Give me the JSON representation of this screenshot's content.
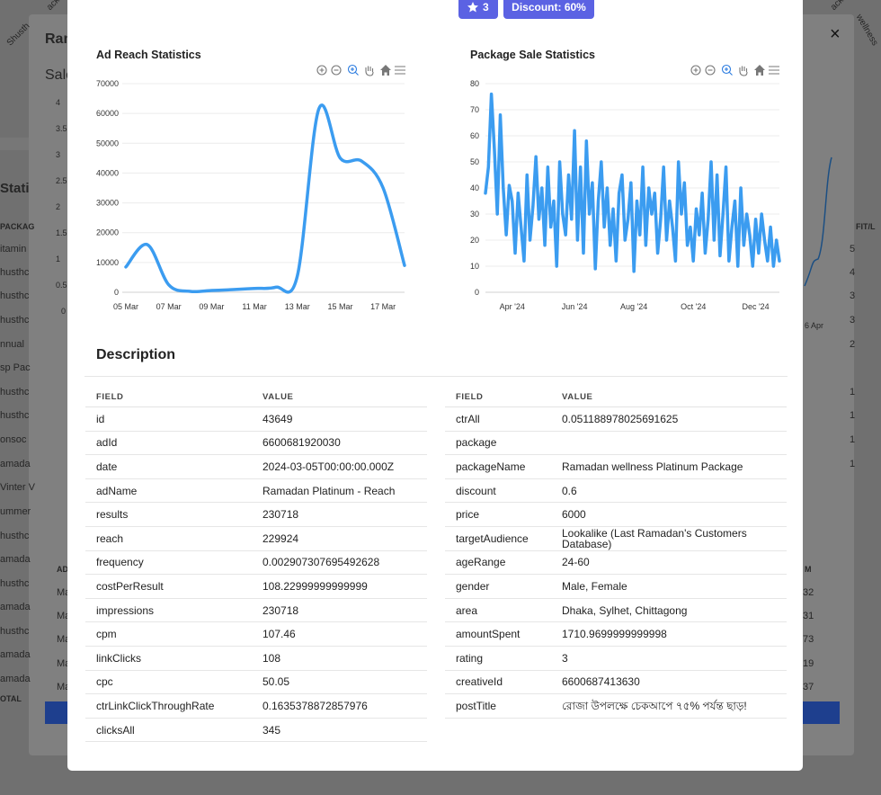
{
  "background": {
    "title": "Ram",
    "subtitle": "Sale",
    "section": "Stati",
    "close": "×",
    "table_header": "PACKAG",
    "rows": [
      "itamin",
      "husthc",
      "husthc",
      "husthc",
      "nnual",
      "sp Pac",
      "husthc",
      "husthc",
      "onsoc",
      "amada",
      "Vinter V",
      "ummer",
      "husthc",
      "amada",
      "husthc",
      "amada",
      "husthc",
      "amada",
      "amada"
    ],
    "total": "OTAL",
    "ad_header": "AD",
    "ad_rows": [
      "Ma",
      "Ma",
      "Ma",
      "Ma",
      "Ma"
    ],
    "right_header": "FIT/L",
    "right_values": [
      "5",
      "4",
      "3",
      "3",
      "2",
      "1",
      "1",
      "1",
      "1"
    ],
    "right_ad_header": "M",
    "right_ad_values": [
      "32",
      "31",
      "73",
      "19",
      "37"
    ],
    "y_ticks": [
      "4",
      "3.5",
      "3",
      "2.5",
      "2",
      "1.5",
      "1",
      "0.5",
      "0"
    ],
    "x_tick": "6 Apr",
    "corner_labels": [
      "Shusth",
      "ackag",
      "ackag",
      "wellness"
    ]
  },
  "badges": {
    "rating": "3",
    "discount": "Discount: 60%"
  },
  "chart_data": [
    {
      "type": "line",
      "title": "Ad Reach Statistics",
      "color": "#3b9cf0",
      "smooth": true,
      "grid": true,
      "categories": [
        "05 Mar",
        null,
        "07 Mar",
        null,
        "09 Mar",
        null,
        "11 Mar",
        null,
        "13 Mar",
        null,
        "15 Mar",
        null,
        "17 Mar",
        null
      ],
      "values": [
        8500,
        16000,
        2500,
        300,
        600,
        900,
        1300,
        1700,
        5500,
        61500,
        45000,
        44000,
        35000,
        9000
      ],
      "ylim": [
        0,
        70000
      ],
      "yticks": [
        0,
        10000,
        20000,
        30000,
        40000,
        50000,
        60000,
        70000
      ]
    },
    {
      "type": "line",
      "title": "Package Sale Statistics",
      "color": "#3b9cf0",
      "smooth": false,
      "grid": true,
      "categories": [
        null,
        null,
        null,
        null,
        null,
        null,
        null,
        null,
        null,
        "Apr '24",
        null,
        null,
        null,
        null,
        null,
        null,
        null,
        null,
        null,
        null,
        null,
        null,
        null,
        null,
        null,
        null,
        null,
        null,
        null,
        null,
        "Jun '24",
        null,
        null,
        null,
        null,
        null,
        null,
        null,
        null,
        null,
        null,
        null,
        null,
        null,
        null,
        null,
        null,
        null,
        null,
        null,
        "Aug '24",
        null,
        null,
        null,
        null,
        null,
        null,
        null,
        null,
        null,
        null,
        null,
        null,
        null,
        null,
        null,
        null,
        null,
        null,
        null,
        "Oct '24",
        null,
        null,
        null,
        null,
        null,
        null,
        null,
        null,
        null,
        null,
        null,
        null,
        null,
        null,
        null,
        null,
        null,
        null,
        null,
        null,
        "Dec '24",
        null,
        null,
        null,
        null,
        null,
        null,
        null,
        null
      ],
      "values": [
        38,
        48,
        76,
        55,
        30,
        68,
        40,
        22,
        41,
        35,
        15,
        38,
        25,
        12,
        45,
        20,
        33,
        52,
        28,
        40,
        18,
        48,
        25,
        35,
        10,
        50,
        30,
        22,
        45,
        28,
        62,
        20,
        48,
        15,
        58,
        30,
        42,
        9,
        35,
        50,
        25,
        40,
        18,
        32,
        12,
        38,
        45,
        20,
        28,
        42,
        8,
        35,
        22,
        48,
        18,
        40,
        30,
        38,
        15,
        28,
        48,
        20,
        35,
        25,
        12,
        50,
        30,
        42,
        18,
        25,
        12,
        32,
        22,
        38,
        15,
        28,
        50,
        20,
        45,
        14,
        30,
        48,
        12,
        25,
        35,
        10,
        40,
        18,
        30,
        22,
        10,
        28,
        15,
        30,
        20,
        12,
        25,
        10,
        20,
        12
      ],
      "ylim": [
        0,
        80
      ],
      "yticks": [
        0,
        10,
        20,
        30,
        40,
        50,
        60,
        70,
        80
      ]
    }
  ],
  "description": {
    "title": "Description",
    "left": {
      "columns": [
        "FIELD",
        "VALUE"
      ],
      "rows": [
        [
          "id",
          "43649"
        ],
        [
          "adId",
          "6600681920030"
        ],
        [
          "date",
          "2024-03-05T00:00:00.000Z"
        ],
        [
          "adName",
          "Ramadan Platinum - Reach"
        ],
        [
          "results",
          "230718"
        ],
        [
          "reach",
          "229924"
        ],
        [
          "frequency",
          "0.002907307695492628"
        ],
        [
          "costPerResult",
          "108.22999999999999"
        ],
        [
          "impressions",
          "230718"
        ],
        [
          "cpm",
          "107.46"
        ],
        [
          "linkClicks",
          "108"
        ],
        [
          "cpc",
          "50.05"
        ],
        [
          "ctrLinkClickThroughRate",
          "0.1635378872857976"
        ],
        [
          "clicksAll",
          "345"
        ]
      ]
    },
    "right": {
      "columns": [
        "FIELD",
        "VALUE"
      ],
      "rows": [
        [
          "ctrAll",
          "0.051188978025691625"
        ],
        [
          "package"
        ],
        [
          "packageName",
          "Ramadan wellness Platinum Package"
        ],
        [
          "discount",
          "0.6"
        ],
        [
          "price",
          "6000"
        ],
        [
          "targetAudience",
          "Lookalike (Last Ramadan's Customers Database)"
        ],
        [
          "ageRange",
          "24-60"
        ],
        [
          "gender",
          "Male, Female"
        ],
        [
          "area",
          "Dhaka, Sylhet, Chittagong"
        ],
        [
          "amountSpent",
          "1710.9699999999998"
        ],
        [
          "rating",
          "3"
        ],
        [
          "creativeId",
          "6600687413630"
        ],
        [
          "postTitle",
          "রোজা উপলক্ষে চেকআপে ৭৫% পর্যন্ত ছাড়!"
        ]
      ]
    }
  }
}
